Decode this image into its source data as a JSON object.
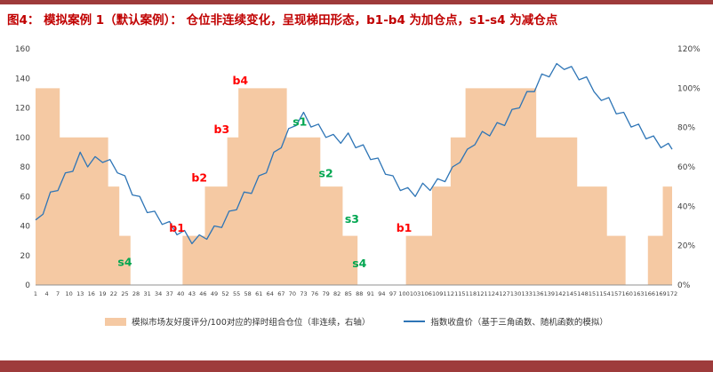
{
  "header": {
    "title": "图4：  模拟案例 1（默认案例）：  仓位非连续变化，呈现梯田形态，b1-b4 为加仓点，s1-s4 为减仓点"
  },
  "colors": {
    "area": "#F5C9A3",
    "line": "#2E75B6",
    "buy": "#FF0000",
    "sell": "#00A650",
    "accent": "#9E3B3B",
    "title": "#C00000",
    "axis_text": "#404040",
    "axis_line": "#909090"
  },
  "legend": {
    "items": [
      {
        "label": "模拟市场友好度评分/100对应的择时组合仓位（非连续，右轴）"
      },
      {
        "label": "指数收盘价（基于三角函数、随机函数的模拟）"
      }
    ]
  },
  "chart_data": {
    "type": "combo",
    "x_axis": {
      "min": 1,
      "max": 172,
      "tick_step": 3
    },
    "left_axis": {
      "min": 0,
      "max": 160,
      "step": 20
    },
    "right_axis": {
      "min": 0,
      "max": 120,
      "step": 20,
      "suffix": "%"
    },
    "series": [
      {
        "name": "模拟市场友好度评分/100对应的择时组合仓位（非连续，右轴）",
        "type": "step-area",
        "axis": "right",
        "unit": "%",
        "segments": [
          [
            1,
            7,
            100
          ],
          [
            8,
            20,
            75
          ],
          [
            21,
            23,
            50
          ],
          [
            24,
            26,
            25
          ],
          [
            27,
            40,
            0
          ],
          [
            41,
            46,
            25
          ],
          [
            47,
            52,
            50
          ],
          [
            53,
            55,
            75
          ],
          [
            56,
            68,
            100
          ],
          [
            69,
            77,
            75
          ],
          [
            78,
            83,
            50
          ],
          [
            84,
            87,
            25
          ],
          [
            88,
            100,
            0
          ],
          [
            101,
            107,
            25
          ],
          [
            108,
            112,
            50
          ],
          [
            113,
            116,
            75
          ],
          [
            117,
            135,
            100
          ],
          [
            136,
            146,
            75
          ],
          [
            147,
            154,
            50
          ],
          [
            155,
            159,
            25
          ],
          [
            160,
            165,
            0
          ],
          [
            166,
            169,
            25
          ],
          [
            170,
            172,
            50
          ]
        ]
      },
      {
        "name": "指数收盘价（基于三角函数、随机函数的模拟）",
        "type": "line",
        "axis": "left",
        "points": [
          [
            1,
            44
          ],
          [
            3,
            48
          ],
          [
            5,
            63
          ],
          [
            7,
            64
          ],
          [
            9,
            76
          ],
          [
            11,
            77
          ],
          [
            13,
            90
          ],
          [
            15,
            80
          ],
          [
            17,
            87
          ],
          [
            19,
            83
          ],
          [
            21,
            85
          ],
          [
            23,
            76
          ],
          [
            25,
            74
          ],
          [
            27,
            61
          ],
          [
            29,
            60
          ],
          [
            31,
            49
          ],
          [
            33,
            50
          ],
          [
            35,
            41
          ],
          [
            37,
            43
          ],
          [
            39,
            34
          ],
          [
            41,
            37
          ],
          [
            43,
            28
          ],
          [
            45,
            34
          ],
          [
            47,
            31
          ],
          [
            49,
            40
          ],
          [
            51,
            39
          ],
          [
            53,
            50
          ],
          [
            55,
            51
          ],
          [
            57,
            63
          ],
          [
            59,
            62
          ],
          [
            61,
            74
          ],
          [
            63,
            76
          ],
          [
            65,
            90
          ],
          [
            67,
            93
          ],
          [
            69,
            106
          ],
          [
            71,
            108
          ],
          [
            73,
            117
          ],
          [
            75,
            107
          ],
          [
            77,
            109
          ],
          [
            79,
            100
          ],
          [
            81,
            102
          ],
          [
            83,
            96
          ],
          [
            85,
            103
          ],
          [
            87,
            93
          ],
          [
            89,
            95
          ],
          [
            91,
            85
          ],
          [
            93,
            86
          ],
          [
            95,
            75
          ],
          [
            97,
            74
          ],
          [
            99,
            64
          ],
          [
            101,
            66
          ],
          [
            103,
            60
          ],
          [
            105,
            69
          ],
          [
            107,
            64
          ],
          [
            109,
            72
          ],
          [
            111,
            70
          ],
          [
            113,
            80
          ],
          [
            115,
            83
          ],
          [
            117,
            92
          ],
          [
            119,
            95
          ],
          [
            121,
            104
          ],
          [
            123,
            101
          ],
          [
            125,
            110
          ],
          [
            127,
            108
          ],
          [
            129,
            119
          ],
          [
            131,
            120
          ],
          [
            133,
            131
          ],
          [
            135,
            131
          ],
          [
            137,
            143
          ],
          [
            139,
            141
          ],
          [
            141,
            150
          ],
          [
            143,
            146
          ],
          [
            145,
            148
          ],
          [
            147,
            139
          ],
          [
            149,
            141
          ],
          [
            151,
            131
          ],
          [
            153,
            125
          ],
          [
            155,
            127
          ],
          [
            157,
            116
          ],
          [
            159,
            117
          ],
          [
            161,
            107
          ],
          [
            163,
            109
          ],
          [
            165,
            99
          ],
          [
            167,
            101
          ],
          [
            169,
            93
          ],
          [
            171,
            96
          ],
          [
            172,
            92
          ]
        ]
      }
    ],
    "annotations": [
      {
        "label": "s4",
        "type": "sell",
        "x": 25,
        "y": 13
      },
      {
        "label": "b1",
        "type": "buy",
        "x": 39,
        "y": 36
      },
      {
        "label": "b2",
        "type": "buy",
        "x": 45,
        "y": 70
      },
      {
        "label": "b3",
        "type": "buy",
        "x": 51,
        "y": 103
      },
      {
        "label": "b4",
        "type": "buy",
        "x": 56,
        "y": 136
      },
      {
        "label": "s1",
        "type": "sell",
        "x": 72,
        "y": 108
      },
      {
        "label": "s2",
        "type": "sell",
        "x": 79,
        "y": 73
      },
      {
        "label": "s3",
        "type": "sell",
        "x": 86,
        "y": 42
      },
      {
        "label": "s4",
        "type": "sell",
        "x": 88,
        "y": 12
      },
      {
        "label": "b1",
        "type": "buy",
        "x": 100,
        "y": 36
      }
    ]
  }
}
